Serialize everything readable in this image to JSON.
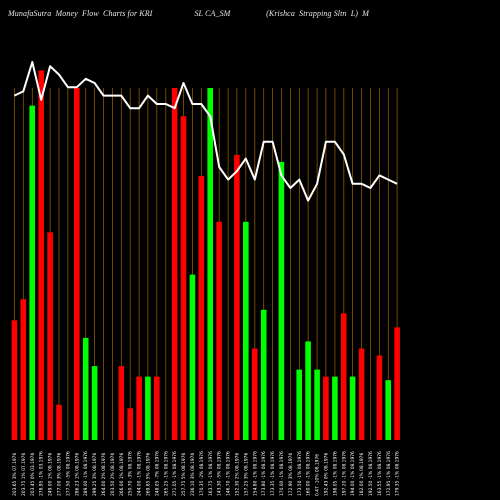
{
  "chart_data": {
    "type": "bar",
    "title": "MunafaSutra  Money  Flow  Charts for KRI                    SL CA_SM                 (Krishca  Strapping Sltn  L)  M",
    "bar_scale_max": 100,
    "line_scale": [
      0,
      100
    ],
    "categories": [
      "203.65 3% 07.1976",
      "203.75 1% 07.1976",
      "203.45 0% 03.1976",
      "278.95 -1% 03.1976",
      "249.00 1% 08.1976",
      "277.00 3% 08.1976",
      "277.50 -5% 08.1976",
      "286.23 1% 08.1976",
      "289.00 -1% 08.1976",
      "299.25 3% 08.1976",
      "264.00 2% 08.1976",
      "203.50 2% 08.1976",
      "266.00 1% 08.1976",
      "250.70 -3% 08.1976",
      "244.00 -1% 08.1976",
      "269.85 5% 08.1976",
      "248.05 -7% 08.1976",
      "265.25 -1% 08.1976",
      "271.05 -1% 08.1976",
      "257.75 5% 08.1976",
      "236.10 3% 08.1976",
      "170.35 -2% 08.1976",
      "163.75 -1% 08.1976",
      "143.30 -5% 08.1976",
      "146.70 -1% 08.1976",
      "152.30 2% 08.1976",
      "157.25 3% 08.1976",
      "154.80 -1% 08.1976",
      "173.80 -1% 08.1976",
      "173.35 -1% 08.1976",
      "170.00 -1% 08.1976",
      "172.90 3% 08.1976",
      "173.50 -1% 08.1976",
      "160.00 -1% 08.1976",
      "0.47 -10% 08.1976",
      "192.43 0% 08.1976",
      "198.05 -1% 08.1976",
      "197.20 -1% 08.1976",
      "194.00 -1% 08.1976",
      "182.00 1% 08.1976",
      "192.50 -1% 08.1976",
      "163.55 -1% 08.1976",
      "172.95 -1% 08.1976",
      "179.35 -1% 08.1976"
    ],
    "colors": [
      "#ff0000",
      "#ff0000",
      "#00ff00",
      "#ff0000",
      "#ff0000",
      "#ff0000",
      "#00ff00",
      "#ff0000",
      "#00ff00",
      "#00ff00",
      "#00ff00",
      "#ff0000",
      "#ff0000",
      "#ff0000",
      "#ff0000",
      "#00ff00",
      "#ff0000",
      "#ff0000",
      "#ff0000",
      "#ff0000",
      "#00ff00",
      "#ff0000",
      "#00ff00",
      "#ff0000",
      "#ff0000",
      "#ff0000",
      "#00ff00",
      "#ff0000",
      "#00ff00",
      "#ff0000",
      "#00ff00",
      "#00ff00",
      "#00ff00",
      "#00ff00",
      "#00ff00",
      "#ff0000",
      "#00ff00",
      "#ff0000",
      "#00ff00",
      "#ff0000",
      "#00ff00",
      "#ff0000",
      "#00ff00",
      "#ff0000"
    ],
    "values": [
      34,
      40,
      95,
      105,
      59,
      10,
      0,
      100,
      29,
      21,
      0,
      0,
      21,
      9,
      18,
      18,
      18,
      0,
      100,
      92,
      47,
      75,
      100,
      62,
      0,
      81,
      62,
      26,
      37,
      0,
      79,
      0,
      20,
      28,
      20,
      18,
      18,
      36,
      18,
      26,
      0,
      24,
      17,
      32
    ],
    "line_values": [
      82,
      83,
      90,
      81,
      89,
      87,
      84,
      84,
      86,
      85,
      82,
      82,
      82,
      79,
      79,
      82,
      80,
      80,
      79,
      85,
      80,
      80,
      77,
      65,
      62,
      64,
      67,
      62,
      71,
      71,
      63,
      60,
      62,
      57,
      61,
      71,
      71,
      68,
      61,
      61,
      60,
      63,
      62,
      61
    ]
  }
}
